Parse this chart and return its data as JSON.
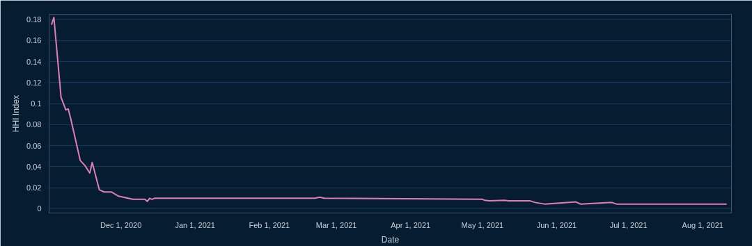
{
  "chart_data": {
    "type": "line",
    "xlabel": "Date",
    "ylabel": "HHI Index",
    "x": [
      "2020-11-02",
      "2020-11-03",
      "2020-11-06",
      "2020-11-08",
      "2020-11-09",
      "2020-11-10",
      "2020-11-14",
      "2020-11-16",
      "2020-11-18",
      "2020-11-19",
      "2020-11-22",
      "2020-11-24",
      "2020-11-27",
      "2020-11-30",
      "2020-12-06",
      "2020-12-11",
      "2020-12-12",
      "2020-12-13",
      "2020-12-14",
      "2020-12-15",
      "2020-12-17",
      "2021-02-20",
      "2021-02-22",
      "2021-02-24",
      "2021-05-01",
      "2021-05-02",
      "2021-05-04",
      "2021-05-10",
      "2021-05-12",
      "2021-05-21",
      "2021-05-23",
      "2021-05-27",
      "2021-06-09",
      "2021-06-11",
      "2021-06-24",
      "2021-06-26",
      "2021-08-11"
    ],
    "series": [
      {
        "color": "#e07fb5",
        "values": [
          0.175,
          0.182,
          0.106,
          0.094,
          0.095,
          0.086,
          0.046,
          0.041,
          0.034,
          0.044,
          0.018,
          0.016,
          0.016,
          0.012,
          0.009,
          0.009,
          0.007,
          0.01,
          0.009,
          0.01,
          0.01,
          0.01,
          0.011,
          0.01,
          0.009,
          0.008,
          0.0075,
          0.008,
          0.0075,
          0.0075,
          0.006,
          0.0045,
          0.0065,
          0.0045,
          0.006,
          0.0045,
          0.0045
        ]
      }
    ],
    "xlim": [
      "2020-11-01",
      "2021-08-13"
    ],
    "xticks": [
      {
        "value": "2020-12-01",
        "label": "Dec 1, 2020"
      },
      {
        "value": "2021-01-01",
        "label": "Jan 1, 2021"
      },
      {
        "value": "2021-02-01",
        "label": "Feb 1, 2021"
      },
      {
        "value": "2021-03-01",
        "label": "Mar 1, 2021"
      },
      {
        "value": "2021-04-01",
        "label": "Apr 1, 2021"
      },
      {
        "value": "2021-05-01",
        "label": "May 1, 2021"
      },
      {
        "value": "2021-06-01",
        "label": "Jun 1, 2021"
      },
      {
        "value": "2021-07-01",
        "label": "Jul 1, 2021"
      },
      {
        "value": "2021-08-01",
        "label": "Aug 1, 2021"
      }
    ],
    "ylim": [
      -0.004,
      0.185
    ],
    "yticks": [
      0,
      0.02,
      0.04,
      0.06,
      0.08,
      0.1,
      0.12,
      0.14,
      0.16,
      0.18
    ],
    "grid": "y",
    "line_style": "solid",
    "marker": "none"
  }
}
